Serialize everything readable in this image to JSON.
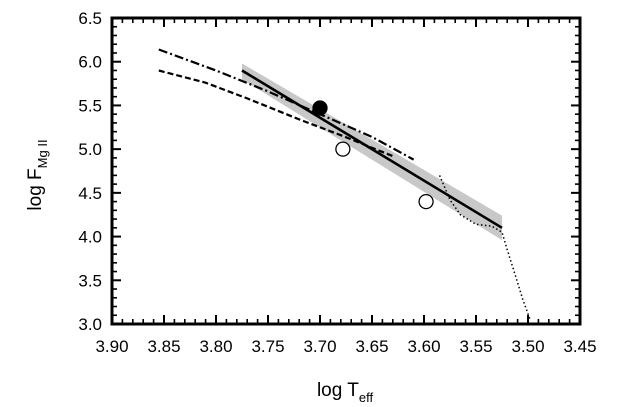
{
  "chart_data": {
    "type": "line",
    "title": "",
    "xlabel": {
      "main": "log T",
      "sub": "eff"
    },
    "ylabel": {
      "main": "log F",
      "sub": "Mg II"
    },
    "xlim": [
      3.9,
      3.45
    ],
    "ylim": [
      3.0,
      6.5
    ],
    "x_reversed": true,
    "x_ticks": [
      3.9,
      3.85,
      3.8,
      3.75,
      3.7,
      3.65,
      3.6,
      3.55,
      3.5,
      3.45
    ],
    "x_tick_labels": [
      "3.90",
      "3.85",
      "3.80",
      "3.75",
      "3.70",
      "3.65",
      "3.60",
      "3.55",
      "3.50",
      "3.45"
    ],
    "y_ticks": [
      3.0,
      3.5,
      4.0,
      4.5,
      5.0,
      5.5,
      6.0,
      6.5
    ],
    "y_tick_labels": [
      "3.0",
      "3.5",
      "4.0",
      "4.5",
      "5.0",
      "5.5",
      "6.0",
      "6.5"
    ],
    "grid": false,
    "legend": false,
    "series": [
      {
        "style": "solid-fit",
        "color": "#000000",
        "x": [
          3.775,
          3.525
        ],
        "y": [
          5.9,
          4.1
        ]
      },
      {
        "style": "dash-dot",
        "color": "#000000",
        "x": [
          3.855,
          3.8,
          3.75,
          3.7,
          3.65,
          3.61
        ],
        "y": [
          6.14,
          5.9,
          5.66,
          5.4,
          5.14,
          4.88
        ]
      },
      {
        "style": "dashed",
        "color": "#000000",
        "x": [
          3.855,
          3.81,
          3.77,
          3.72,
          3.68,
          3.63
        ],
        "y": [
          5.9,
          5.76,
          5.58,
          5.34,
          5.16,
          4.92
        ]
      },
      {
        "style": "dotted",
        "color": "#000000",
        "x": [
          3.585,
          3.575,
          3.565,
          3.55,
          3.535,
          3.525,
          3.52,
          3.512,
          3.505,
          3.498
        ],
        "y": [
          4.7,
          4.42,
          4.25,
          4.14,
          4.12,
          4.05,
          3.85,
          3.55,
          3.28,
          3.05
        ]
      }
    ],
    "band": {
      "color": "#c8c8c8",
      "x": [
        3.775,
        3.525
      ],
      "upper": [
        5.98,
        4.24
      ],
      "lower": [
        5.8,
        3.96
      ]
    },
    "points": [
      {
        "x": 3.7,
        "y": 5.47,
        "filled": true
      },
      {
        "x": 3.678,
        "y": 5.0,
        "filled": false
      },
      {
        "x": 3.598,
        "y": 4.4,
        "filled": false
      }
    ]
  }
}
